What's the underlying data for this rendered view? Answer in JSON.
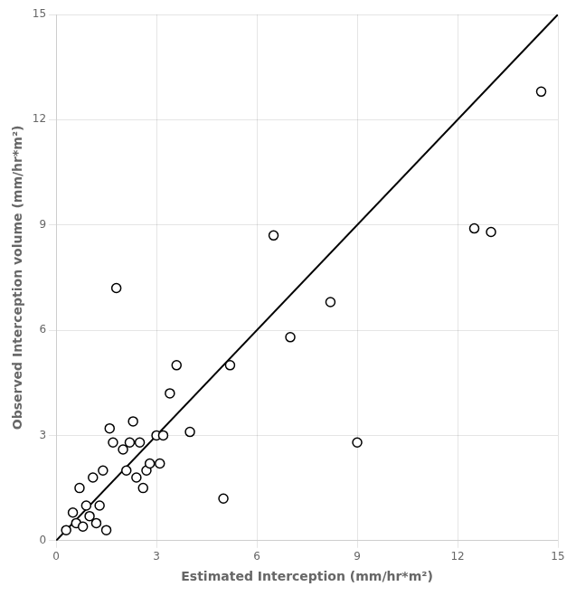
{
  "chart_data": {
    "type": "scatter",
    "xlabel": "Estimated Interception (mm/hr*m²)",
    "ylabel": "Observed Interception volume (mm/hr*m²)",
    "xlim": [
      0,
      15
    ],
    "ylim": [
      0,
      15
    ],
    "xticks": [
      0,
      3,
      6,
      9,
      12,
      15
    ],
    "yticks": [
      0,
      3,
      6,
      9,
      12,
      15
    ],
    "grid": true,
    "series": [
      {
        "type": "scatter",
        "color": "#000000",
        "marker": "open_circle",
        "x": [
          0.3,
          0.5,
          0.6,
          0.7,
          0.8,
          0.9,
          1.0,
          1.1,
          1.2,
          1.3,
          1.4,
          1.5,
          1.6,
          1.7,
          1.8,
          2.0,
          2.1,
          2.2,
          2.3,
          2.4,
          2.5,
          2.6,
          2.7,
          2.8,
          3.0,
          3.1,
          3.2,
          3.4,
          3.6,
          4.0,
          5.0,
          5.2,
          6.5,
          7.0,
          8.2,
          9.0,
          12.5,
          13.0,
          14.5
        ],
        "values": [
          0.3,
          0.8,
          0.5,
          1.5,
          0.4,
          1.0,
          0.7,
          1.8,
          0.5,
          1.0,
          2.0,
          0.3,
          3.2,
          2.8,
          7.2,
          2.6,
          2.0,
          2.8,
          3.4,
          1.8,
          2.8,
          1.5,
          2.0,
          2.2,
          3.0,
          2.2,
          3.0,
          4.2,
          5.0,
          3.1,
          1.2,
          5.0,
          8.7,
          5.8,
          6.8,
          2.8,
          8.9,
          8.8,
          12.8
        ]
      },
      {
        "type": "line",
        "color": "#000000",
        "line_style": "solid",
        "x": [
          0,
          15
        ],
        "values": [
          0,
          15
        ]
      }
    ]
  }
}
